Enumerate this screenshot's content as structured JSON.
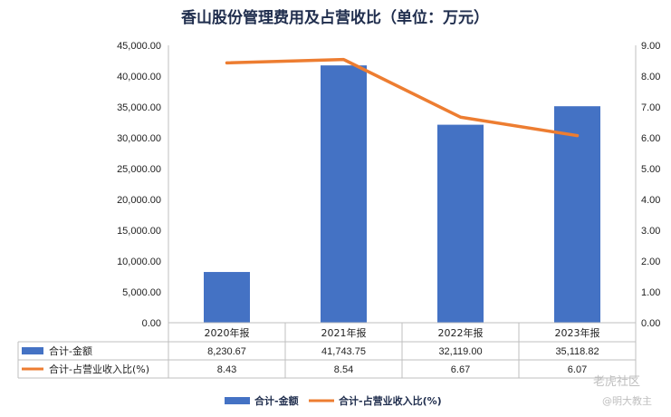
{
  "chart_data": {
    "type": "bar",
    "title": "香山股份管理费用及占营收比（单位：万元）",
    "categories": [
      "2020年报",
      "2021年报",
      "2022年报",
      "2023年报"
    ],
    "series": [
      {
        "name": "合计-金额",
        "type": "bar",
        "axis": "left",
        "values": [
          8230.67,
          41743.75,
          32119.0,
          35118.82
        ],
        "value_labels": [
          "8,230.67",
          "41,743.75",
          "32,119.00",
          "35,118.82"
        ],
        "color": "#4472c4"
      },
      {
        "name": "合计-占营业收入比(%)",
        "type": "line",
        "axis": "right",
        "values": [
          8.43,
          8.54,
          6.67,
          6.07
        ],
        "value_labels": [
          "8.43",
          "8.54",
          "6.67",
          "6.07"
        ],
        "color": "#ed7d31"
      }
    ],
    "y_left": {
      "ylim": [
        0,
        45000
      ],
      "ticks": [
        "0.00",
        "5,000.00",
        "10,000.00",
        "15,000.00",
        "20,000.00",
        "25,000.00",
        "30,000.00",
        "35,000.00",
        "40,000.00",
        "45,000.00"
      ]
    },
    "y_right": {
      "ylim": [
        0,
        9
      ],
      "ticks": [
        "0.00",
        "1.00",
        "2.00",
        "3.00",
        "4.00",
        "5.00",
        "6.00",
        "7.00",
        "8.00",
        "9.00"
      ]
    },
    "grid": false,
    "data_table": true,
    "legend_position": "bottom"
  },
  "watermark": {
    "line1": "老虎社区",
    "line2": "@明大教主"
  }
}
